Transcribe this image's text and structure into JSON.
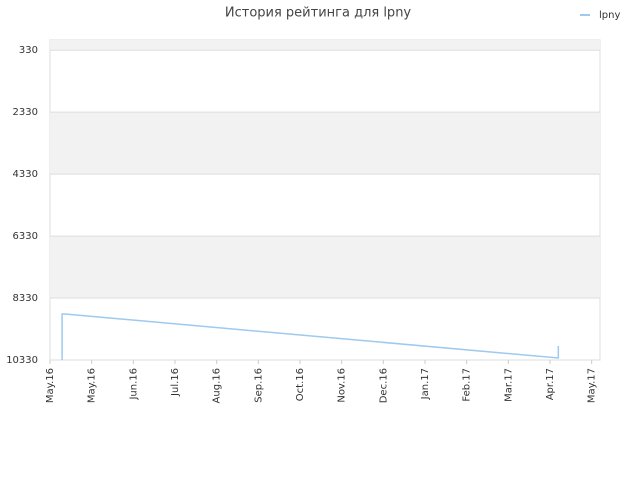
{
  "chart_data": {
    "type": "line",
    "title": "История рейтинга для lpny",
    "x": [
      0.29,
      0.29,
      0.36,
      12.2,
      12.2
    ],
    "series": [
      {
        "name": "lpny",
        "color": "#9ec9f0",
        "values": [
          10330,
          8846,
          8846,
          10265,
          9878
        ]
      }
    ],
    "xlim": [
      0,
      13.2
    ],
    "xticks": [
      {
        "value": 0,
        "label": "May.16"
      },
      {
        "value": 1,
        "label": "May.16"
      },
      {
        "value": 2,
        "label": "Jun.16"
      },
      {
        "value": 3,
        "label": "Jul.16"
      },
      {
        "value": 4,
        "label": "Aug.16"
      },
      {
        "value": 5,
        "label": "Sep.16"
      },
      {
        "value": 6,
        "label": "Oct.16"
      },
      {
        "value": 7,
        "label": "Nov.16"
      },
      {
        "value": 8,
        "label": "Dec.16"
      },
      {
        "value": 9,
        "label": "Jan.17"
      },
      {
        "value": 10,
        "label": "Feb.17"
      },
      {
        "value": 11,
        "label": "Mar.17"
      },
      {
        "value": 12,
        "label": "Apr.17"
      },
      {
        "value": 13,
        "label": "May.17"
      }
    ],
    "ylim": [
      10330,
      0
    ],
    "yticks": [
      330,
      2330,
      4330,
      6330,
      8330,
      10330
    ],
    "grid": true,
    "legend": "top-right"
  }
}
